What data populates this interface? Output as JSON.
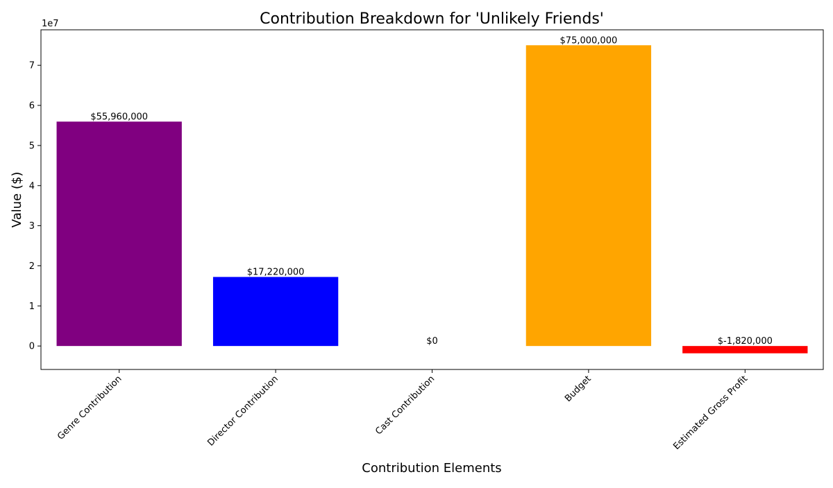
{
  "chart_data": {
    "type": "bar",
    "title": "Contribution Breakdown for 'Unlikely Friends'",
    "xlabel": "Contribution Elements",
    "ylabel": "Value ($)",
    "offset_text": "1e7",
    "categories": [
      "Genre Contribution",
      "Director Contribution",
      "Cast Contribution",
      "Budget",
      "Estimated Gross Profit"
    ],
    "values": [
      55960000,
      17220000,
      0,
      75000000,
      -1820000
    ],
    "value_labels": [
      "$55,960,000",
      "$17,220,000",
      "$0",
      "$75,000,000",
      "$-1,820,000"
    ],
    "colors": [
      "#800080",
      "#0000ff",
      "#008000",
      "#ffa500",
      "#ff0000"
    ],
    "ylim": [
      -5850000,
      78850000
    ],
    "yticks": [
      0,
      10000000,
      20000000,
      30000000,
      40000000,
      50000000,
      60000000,
      70000000
    ],
    "ytick_labels": [
      "0",
      "1",
      "2",
      "3",
      "4",
      "5",
      "6",
      "7"
    ],
    "grid": false,
    "legend": "none"
  }
}
